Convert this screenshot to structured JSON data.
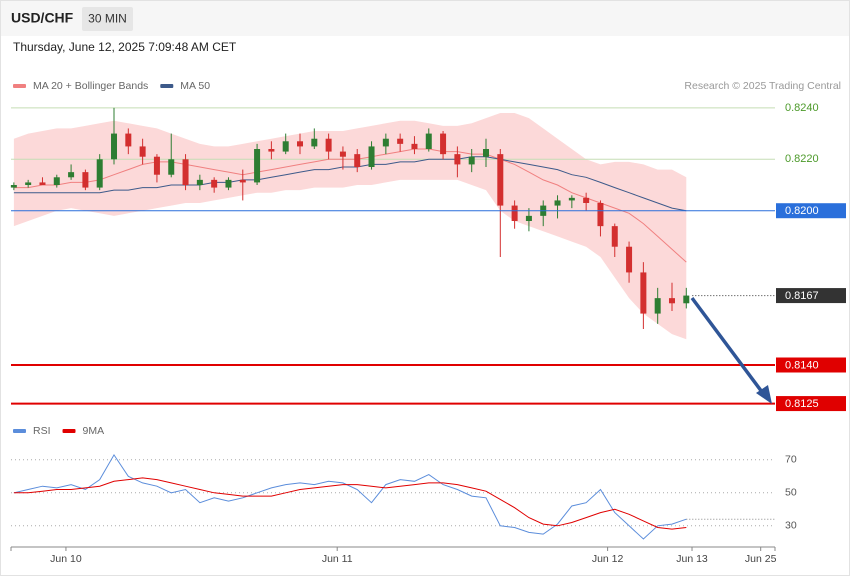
{
  "header": {
    "symbol": "USD/CHF",
    "interval": "30 MIN",
    "datetime": "Thursday, June 12, 2025 7:09:48 AM CET"
  },
  "credit": "Research © 2025 Trading Central",
  "chart_data": [
    {
      "type": "candlestick",
      "xlim": [
        -0.2,
        53.2
      ],
      "ylim": [
        0.8119,
        0.8245
      ],
      "yticks": [
        {
          "value": 0.824,
          "label": "0.8240"
        },
        {
          "value": 0.822,
          "label": "0.8220"
        }
      ],
      "levels": [
        {
          "value": 0.82,
          "label": "0.8200",
          "color": "#2a6fdb"
        },
        {
          "value": 0.8167,
          "label": "0.8167",
          "color": "#333333"
        },
        {
          "value": 0.814,
          "label": "0.8140",
          "color": "#e00000"
        },
        {
          "value": 0.8125,
          "label": "0.8125",
          "color": "#e00000"
        }
      ],
      "up_color": "#2e7d32",
      "down_color": "#d32f2f",
      "open": [
        0.8209,
        0.821,
        0.8211,
        0.821,
        0.8213,
        0.8215,
        0.8209,
        0.822,
        0.823,
        0.8225,
        0.8221,
        0.8214,
        0.822,
        0.821,
        0.8212,
        0.8209,
        0.8212,
        0.8211,
        0.8224,
        0.8223,
        0.8227,
        0.8225,
        0.8228,
        0.8223,
        0.8222,
        0.8217,
        0.8225,
        0.8228,
        0.8226,
        0.8224,
        0.823,
        0.8222,
        0.8218,
        0.8221,
        0.8222,
        0.8202,
        0.8196,
        0.8198,
        0.8202,
        0.8204,
        0.8205,
        0.8203,
        0.8194,
        0.8186,
        0.8176,
        0.816,
        0.8166,
        0.8164
      ],
      "high": [
        0.8211,
        0.8212,
        0.8213,
        0.8214,
        0.8218,
        0.8216,
        0.8222,
        0.824,
        0.8232,
        0.8228,
        0.8222,
        0.823,
        0.8222,
        0.8214,
        0.8213,
        0.8213,
        0.8216,
        0.8226,
        0.8227,
        0.823,
        0.823,
        0.8232,
        0.823,
        0.8225,
        0.8224,
        0.8227,
        0.823,
        0.823,
        0.8229,
        0.8232,
        0.8231,
        0.8225,
        0.8224,
        0.8228,
        0.8224,
        0.8204,
        0.8201,
        0.8204,
        0.8206,
        0.8206,
        0.8207,
        0.8204,
        0.8195,
        0.8188,
        0.818,
        0.817,
        0.8172,
        0.817
      ],
      "low": [
        0.8208,
        0.8209,
        0.821,
        0.8209,
        0.8212,
        0.8208,
        0.8208,
        0.8218,
        0.8222,
        0.8218,
        0.8211,
        0.8213,
        0.8208,
        0.8208,
        0.8207,
        0.8208,
        0.8204,
        0.821,
        0.822,
        0.8222,
        0.8222,
        0.8224,
        0.822,
        0.8216,
        0.8215,
        0.8216,
        0.8222,
        0.8223,
        0.8222,
        0.8223,
        0.822,
        0.8213,
        0.8215,
        0.8217,
        0.8182,
        0.8193,
        0.8192,
        0.8194,
        0.8197,
        0.8201,
        0.82,
        0.819,
        0.8182,
        0.8172,
        0.8154,
        0.8156,
        0.8161,
        0.8162
      ],
      "close": [
        0.821,
        0.8211,
        0.821,
        0.8213,
        0.8215,
        0.8209,
        0.822,
        0.823,
        0.8225,
        0.8221,
        0.8214,
        0.822,
        0.821,
        0.8212,
        0.8209,
        0.8212,
        0.8211,
        0.8224,
        0.8223,
        0.8227,
        0.8225,
        0.8228,
        0.8223,
        0.8221,
        0.8217,
        0.8225,
        0.8228,
        0.8226,
        0.8224,
        0.823,
        0.8222,
        0.8218,
        0.8221,
        0.8224,
        0.8202,
        0.8196,
        0.8198,
        0.8202,
        0.8204,
        0.8205,
        0.8203,
        0.8194,
        0.8186,
        0.8176,
        0.816,
        0.8166,
        0.8164,
        0.8167
      ],
      "band_color": "#fcd9d9",
      "band_upper": [
        0.8228,
        0.823,
        0.8231,
        0.8232,
        0.8232,
        0.8233,
        0.8234,
        0.8235,
        0.8234,
        0.8233,
        0.8232,
        0.823,
        0.8228,
        0.8226,
        0.8225,
        0.8225,
        0.8226,
        0.8227,
        0.8228,
        0.8229,
        0.823,
        0.8231,
        0.8231,
        0.8231,
        0.8232,
        0.8233,
        0.8234,
        0.8235,
        0.8235,
        0.8234,
        0.8233,
        0.8233,
        0.8234,
        0.8236,
        0.8238,
        0.8238,
        0.8236,
        0.8232,
        0.8228,
        0.8224,
        0.822,
        0.8218,
        0.8219,
        0.8219,
        0.8218,
        0.8216,
        0.8216,
        0.8213
      ],
      "band_lower": [
        0.8194,
        0.8196,
        0.8198,
        0.82,
        0.8201,
        0.82,
        0.8199,
        0.8198,
        0.8199,
        0.82,
        0.8201,
        0.8202,
        0.8203,
        0.8203,
        0.8204,
        0.8205,
        0.8206,
        0.8207,
        0.8207,
        0.8208,
        0.8208,
        0.8209,
        0.8209,
        0.8209,
        0.821,
        0.821,
        0.8211,
        0.8212,
        0.8212,
        0.8212,
        0.8212,
        0.8212,
        0.821,
        0.8208,
        0.82,
        0.8196,
        0.8194,
        0.8192,
        0.819,
        0.8188,
        0.8186,
        0.8182,
        0.8174,
        0.8166,
        0.816,
        0.8156,
        0.8152,
        0.815
      ],
      "series": [
        {
          "name": "MA 20 + Bollinger Bands",
          "color": "#f08080",
          "values": [
            0.8209,
            0.8209,
            0.821,
            0.821,
            0.8211,
            0.8211,
            0.8212,
            0.8214,
            0.8216,
            0.8218,
            0.8219,
            0.8219,
            0.8218,
            0.8217,
            0.8216,
            0.8215,
            0.8214,
            0.8215,
            0.8216,
            0.8217,
            0.8218,
            0.8219,
            0.822,
            0.822,
            0.822,
            0.8221,
            0.8222,
            0.8223,
            0.8224,
            0.8224,
            0.8223,
            0.8223,
            0.8222,
            0.8222,
            0.822,
            0.8218,
            0.8215,
            0.8212,
            0.821,
            0.8207,
            0.8205,
            0.8203,
            0.8201,
            0.8199,
            0.8195,
            0.819,
            0.8185,
            0.818
          ]
        },
        {
          "name": "MA 50",
          "color": "#3d5a8a",
          "values": [
            0.8207,
            0.8207,
            0.8207,
            0.8207,
            0.8207,
            0.8207,
            0.8207,
            0.8208,
            0.8208,
            0.8209,
            0.8209,
            0.821,
            0.821,
            0.821,
            0.8211,
            0.8211,
            0.8212,
            0.8212,
            0.8213,
            0.8214,
            0.8215,
            0.8216,
            0.8216,
            0.8217,
            0.8217,
            0.8218,
            0.8218,
            0.8219,
            0.8219,
            0.822,
            0.822,
            0.822,
            0.8221,
            0.8221,
            0.822,
            0.8219,
            0.8218,
            0.8217,
            0.8216,
            0.8214,
            0.8213,
            0.8211,
            0.8209,
            0.8207,
            0.8205,
            0.8203,
            0.8201,
            0.82
          ]
        }
      ]
    },
    {
      "type": "line",
      "xlim": [
        -0.2,
        53.2
      ],
      "xticks": [
        {
          "value": 3.64,
          "label": "Jun 10"
        },
        {
          "value": 22.6,
          "label": "Jun 11"
        },
        {
          "value": 41.5,
          "label": "Jun 12"
        },
        {
          "value": 47.4,
          "label": "Jun 13"
        },
        {
          "value": 52.2,
          "label": "Jun 25"
        }
      ],
      "ylim": [
        18,
        82
      ],
      "yticks": [
        70,
        50,
        30
      ],
      "grid": true,
      "series": [
        {
          "name": "RSI",
          "color": "#5b8ddb",
          "values": [
            50,
            52,
            54,
            53,
            55,
            52,
            58,
            73,
            60,
            56,
            54,
            50,
            52,
            44,
            47,
            45,
            47,
            50,
            53,
            55,
            56,
            55,
            57,
            56,
            52,
            44,
            55,
            58,
            57,
            61,
            55,
            52,
            48,
            47,
            30,
            29,
            26,
            25,
            31,
            42,
            44,
            52,
            38,
            30,
            22,
            30,
            31,
            34
          ]
        },
        {
          "name": "9MA",
          "color": "#e00000",
          "values": [
            50,
            50,
            51,
            52,
            52,
            53,
            54,
            57,
            58,
            59,
            58,
            56,
            54,
            52,
            50,
            49,
            48,
            48,
            48,
            50,
            52,
            53,
            54,
            55,
            55,
            54,
            53,
            54,
            55,
            56,
            56,
            55,
            53,
            51,
            46,
            41,
            35,
            31,
            30,
            32,
            35,
            38,
            40,
            37,
            33,
            29,
            28,
            29
          ]
        }
      ]
    }
  ]
}
